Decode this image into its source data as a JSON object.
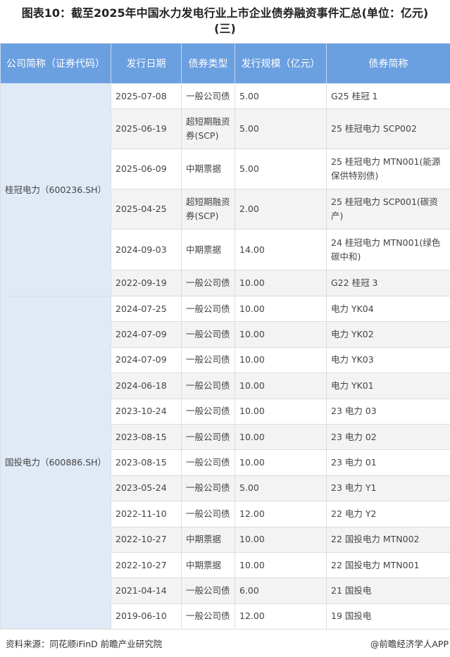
{
  "title_line1": "图表10：截至2025年中国水力发电行业上市企业债券融资事件汇总(单位：亿元)",
  "title_line2": "(三)",
  "headers": [
    "公司简称（证券代码）",
    "发行日期",
    "债券类型",
    "发行规模（亿元）",
    "债券简称"
  ],
  "header_color": "#6a9fe0",
  "groups": [
    {
      "company": "桂冠电力（600236.SH）",
      "rows": [
        {
          "date": "2025-07-08",
          "type": "一般公司债",
          "amount": "5.00",
          "name": "G25 桂冠 1"
        },
        {
          "date": "2025-06-19",
          "type": "超短期融资券(SCP)",
          "amount": "5.00",
          "name": "25 桂冠电力 SCP002"
        },
        {
          "date": "2025-06-09",
          "type": "中期票据",
          "amount": "5.00",
          "name": "25 桂冠电力 MTN001(能源保供特别债)"
        },
        {
          "date": "2025-04-25",
          "type": "超短期融资券(SCP)",
          "amount": "2.00",
          "name": "25 桂冠电力 SCP001(碳资产)"
        },
        {
          "date": "2024-09-03",
          "type": "中期票据",
          "amount": "14.00",
          "name": "24 桂冠电力 MTN001(绿色碳中和)"
        },
        {
          "date": "2022-09-19",
          "type": "一般公司债",
          "amount": "10.00",
          "name": "G22 桂冠 3"
        }
      ]
    },
    {
      "company": "国投电力（600886.SH）",
      "rows": [
        {
          "date": "2024-07-25",
          "type": "一般公司债",
          "amount": "10.00",
          "name": "电力 YK04"
        },
        {
          "date": "2024-07-09",
          "type": "一般公司债",
          "amount": "10.00",
          "name": "电力 YK02"
        },
        {
          "date": "2024-07-09",
          "type": "一般公司债",
          "amount": "10.00",
          "name": "电力 YK03"
        },
        {
          "date": "2024-06-18",
          "type": "一般公司债",
          "amount": "10.00",
          "name": "电力 YK01"
        },
        {
          "date": "2023-10-24",
          "type": "一般公司债",
          "amount": "10.00",
          "name": "23 电力 03"
        },
        {
          "date": "2023-08-15",
          "type": "一般公司债",
          "amount": "10.00",
          "name": "23 电力 02"
        },
        {
          "date": "2023-08-15",
          "type": "一般公司债",
          "amount": "10.00",
          "name": "23 电力 01"
        },
        {
          "date": "2023-05-24",
          "type": "一般公司债",
          "amount": "5.00",
          "name": "23 电力 Y1"
        },
        {
          "date": "2022-11-10",
          "type": "一般公司债",
          "amount": "12.00",
          "name": "22 电力 Y2"
        },
        {
          "date": "2022-10-27",
          "type": "中期票据",
          "amount": "10.00",
          "name": "22 国投电力 MTN002"
        },
        {
          "date": "2022-10-27",
          "type": "中期票据",
          "amount": "10.00",
          "name": "22 国投电力 MTN001"
        },
        {
          "date": "2021-04-14",
          "type": "一般公司债",
          "amount": "6.00",
          "name": "21 国投电"
        },
        {
          "date": "2019-06-10",
          "type": "一般公司债",
          "amount": "12.00",
          "name": "19 国投电"
        }
      ]
    }
  ],
  "footer": {
    "source": "资料来源：同花顺iFinD 前瞻产业研究院",
    "brand": "@前瞻经济学人APP"
  }
}
